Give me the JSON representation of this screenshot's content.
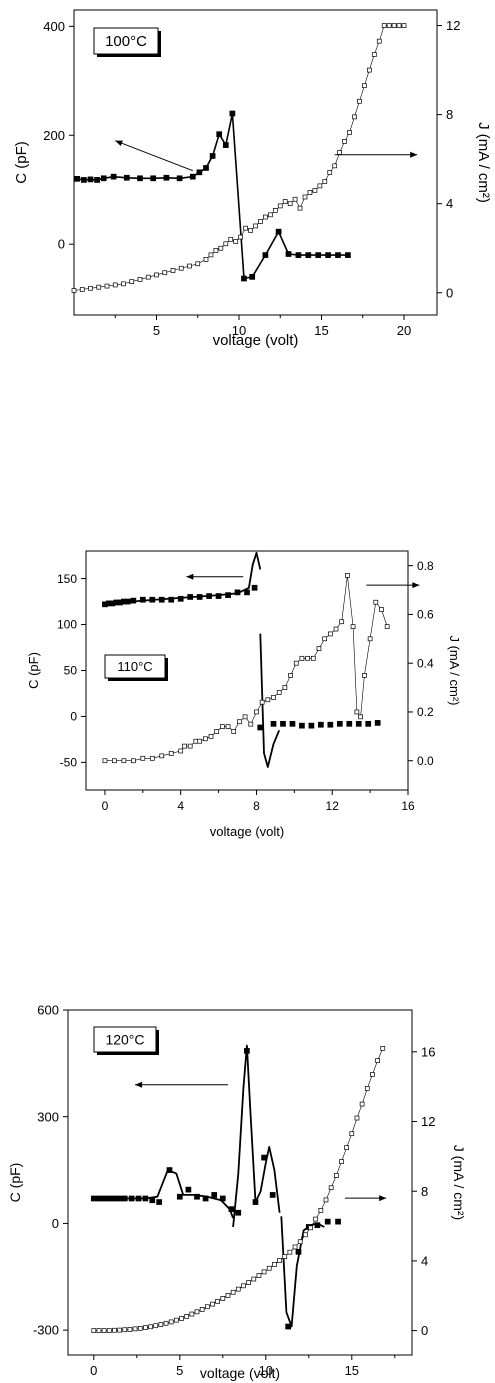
{
  "chart_data": [
    {
      "type": "scatter",
      "temperature_label": "100°C",
      "xlabel": "voltage (volt)",
      "ylabel": "C (pF)",
      "y2label": "J (mA / cm²)",
      "xlim": [
        0,
        22
      ],
      "ylim": [
        -130,
        430
      ],
      "y2lim": [
        -1,
        12.7
      ],
      "xticks": [
        5,
        10,
        15,
        20
      ],
      "yticks": [
        0,
        200,
        400
      ],
      "y2ticks": [
        0,
        4,
        8,
        12
      ],
      "series": [
        {
          "axis": "left",
          "marker": "filled-square",
          "x": [
            0.2,
            0.6,
            1.0,
            1.4,
            1.8,
            2.4,
            3.2,
            4.0,
            4.8,
            5.6,
            6.4,
            7.2,
            7.6,
            8.0,
            8.4,
            8.8,
            9.2,
            9.6,
            10.3,
            10.8,
            11.6,
            12.4,
            13.0,
            13.6,
            14.2,
            14.8,
            15.4,
            16.0,
            16.6
          ],
          "y": [
            120,
            118,
            119,
            118,
            121,
            124,
            122,
            121,
            121,
            122,
            121,
            124,
            132,
            140,
            162,
            202,
            182,
            240,
            -63,
            -60,
            -20,
            23,
            -18,
            -20,
            -20,
            -20,
            -20,
            -20,
            -20
          ]
        },
        {
          "axis": "right",
          "marker": "open-square",
          "x": [
            0,
            0.5,
            1,
            1.5,
            2,
            2.5,
            3,
            3.5,
            4,
            4.5,
            5,
            5.5,
            6,
            6.5,
            7,
            7.5,
            8,
            8.3,
            8.6,
            8.9,
            9.2,
            9.5,
            9.8,
            10.1,
            10.4,
            10.7,
            11,
            11.3,
            11.6,
            11.9,
            12.2,
            12.5,
            12.8,
            13.1,
            13.4,
            13.7,
            14,
            14.3,
            14.6,
            14.9,
            15.2,
            15.5,
            15.8,
            16.1,
            16.4,
            16.7,
            17,
            17.3,
            17.6,
            17.9,
            18.2,
            18.5,
            18.8,
            19.1,
            19.4,
            19.7,
            20
          ],
          "y": [
            0.1,
            0.15,
            0.2,
            0.25,
            0.3,
            0.35,
            0.4,
            0.5,
            0.6,
            0.7,
            0.8,
            0.9,
            1.0,
            1.1,
            1.2,
            1.3,
            1.5,
            1.7,
            1.9,
            2.0,
            2.2,
            2.4,
            2.3,
            2.5,
            2.9,
            2.8,
            3.0,
            3.2,
            3.4,
            3.5,
            3.7,
            3.9,
            4.1,
            4.0,
            4.2,
            3.8,
            4.3,
            4.5,
            4.6,
            4.8,
            5.0,
            5.4,
            5.7,
            6.3,
            6.8,
            7.2,
            7.9,
            8.6,
            9.3,
            10.0,
            10.7,
            11.3,
            12.0,
            12.0,
            12.0,
            12.0,
            12.0
          ]
        }
      ],
      "annotations": [
        {
          "text": "arrow to left axis",
          "from": [
            7.2,
            135
          ],
          "to": [
            2.5,
            190
          ]
        },
        {
          "text": "arrow to right axis",
          "from": [
            15.8,
            6.2
          ],
          "to": [
            20.8,
            6.2
          ]
        }
      ]
    },
    {
      "type": "scatter",
      "temperature_label": "110°C",
      "xlabel": "voltage (volt)",
      "ylabel": "C (pF)",
      "y2label": "J (mA / cm²)",
      "xlim": [
        -1,
        16
      ],
      "ylim": [
        -80,
        180
      ],
      "y2lim": [
        -0.12,
        0.86
      ],
      "xticks": [
        0,
        4,
        8,
        12,
        16
      ],
      "yticks": [
        -50,
        0,
        50,
        100,
        150
      ],
      "y2ticks": [
        0.0,
        0.2,
        0.4,
        0.6,
        0.8
      ],
      "series": [
        {
          "axis": "left",
          "marker": "filled-square",
          "x": [
            0,
            0.2,
            0.4,
            0.6,
            0.8,
            1.0,
            1.2,
            1.5,
            2.0,
            2.5,
            3.0,
            3.5,
            4.0,
            4.5,
            5.0,
            5.5,
            6.0,
            6.5,
            7.0,
            7.5,
            7.9,
            8.2,
            8.9,
            9.4,
            9.9,
            10.4,
            10.9,
            11.4,
            11.9,
            12.4,
            12.9,
            13.4,
            13.9,
            14.4
          ],
          "y": [
            122,
            123,
            123,
            124,
            124,
            125,
            125,
            126,
            127,
            127,
            127,
            127,
            128,
            130,
            130,
            131,
            131,
            132,
            135,
            135,
            140,
            -12,
            -8,
            -8,
            -8,
            -10,
            -10,
            -9,
            -9,
            -8,
            -8,
            -8,
            -8,
            -7
          ],
          "fit_segments": [
            {
              "x": [
                0,
                2,
                4,
                6,
                7,
                7.6,
                7.8,
                8.0,
                8.2
              ],
              "y": [
                122,
                126,
                129,
                132,
                134,
                140,
                165,
                178,
                160
              ]
            },
            {
              "x": [
                8.2,
                8.4,
                8.6,
                8.9,
                9.2
              ],
              "y": [
                90,
                -40,
                -55,
                -30,
                -15
              ]
            }
          ]
        },
        {
          "axis": "right",
          "marker": "open-square",
          "x": [
            0,
            0.5,
            1,
            1.5,
            2,
            2.5,
            3,
            3.5,
            4,
            4.2,
            4.5,
            4.8,
            5.0,
            5.3,
            5.6,
            5.9,
            6.2,
            6.5,
            6.8,
            7.1,
            7.4,
            7.7,
            8.0,
            8.3,
            8.6,
            8.9,
            9.2,
            9.5,
            9.8,
            10.1,
            10.4,
            10.7,
            11,
            11.3,
            11.6,
            11.9,
            12.2,
            12.5,
            12.8,
            13.1,
            13.3,
            13.5,
            13.7,
            14,
            14.3,
            14.6,
            14.9
          ],
          "y": [
            0.0,
            0.0,
            0.0,
            0.0,
            0.01,
            0.01,
            0.02,
            0.03,
            0.04,
            0.06,
            0.06,
            0.08,
            0.08,
            0.09,
            0.1,
            0.12,
            0.14,
            0.14,
            0.12,
            0.16,
            0.18,
            0.15,
            0.2,
            0.24,
            0.25,
            0.26,
            0.28,
            0.3,
            0.35,
            0.4,
            0.42,
            0.42,
            0.42,
            0.46,
            0.5,
            0.52,
            0.54,
            0.57,
            0.76,
            0.55,
            0.2,
            0.18,
            0.35,
            0.5,
            0.65,
            0.62,
            0.55
          ]
        }
      ],
      "annotations": [
        {
          "text": "arrow to left axis",
          "from": [
            7.3,
            152
          ],
          "to": [
            4.3,
            152
          ]
        },
        {
          "text": "arrow to right axis",
          "from": [
            13.8,
            0.72
          ],
          "to": [
            16.6,
            0.72
          ]
        }
      ]
    },
    {
      "type": "scatter",
      "temperature_label": "120°C",
      "xlabel": "voltage (volt)",
      "ylabel": "C (pF)",
      "y2label": "J (mA / cm²)",
      "xlim": [
        -1.5,
        18.5
      ],
      "ylim": [
        -370,
        600
      ],
      "y2lim": [
        -1.4,
        18.4
      ],
      "xticks": [
        0,
        5,
        10,
        15
      ],
      "yticks": [
        -300,
        0,
        300,
        600
      ],
      "y2ticks": [
        0,
        4,
        8,
        12,
        16
      ],
      "series": [
        {
          "axis": "left",
          "marker": "filled-square",
          "x": [
            0,
            0.3,
            0.6,
            0.9,
            1.2,
            1.5,
            1.8,
            2.2,
            2.6,
            3.0,
            3.4,
            3.8,
            4.4,
            5.0,
            5.5,
            6.0,
            6.5,
            7.0,
            7.5,
            8.0,
            8.4,
            8.9,
            9.4,
            9.9,
            10.4,
            11.3,
            11.9,
            12.5,
            13.0,
            13.6,
            14.2
          ],
          "y": [
            70,
            70,
            70,
            70,
            70,
            70,
            70,
            70,
            70,
            70,
            65,
            60,
            150,
            75,
            95,
            75,
            70,
            80,
            70,
            40,
            30,
            485,
            60,
            185,
            80,
            -290,
            -80,
            -10,
            -5,
            5,
            5
          ],
          "fit_segments": [
            {
              "x": [
                0,
                3,
                3.7,
                4.3,
                4.8,
                5.2,
                5.8,
                6.6,
                7.4,
                7.9,
                8.1
              ],
              "y": [
                70,
                70,
                75,
                150,
                140,
                80,
                80,
                75,
                65,
                40,
                15
              ]
            },
            {
              "x": [
                8.1,
                8.4,
                8.7,
                8.9,
                9.1,
                9.4,
                9.7,
                10.0
              ],
              "y": [
                -10,
                140,
                380,
                500,
                320,
                60,
                90,
                170
              ]
            },
            {
              "x": [
                10.0,
                10.2,
                10.5,
                10.8
              ],
              "y": [
                170,
                215,
                150,
                30
              ]
            },
            {
              "x": [
                10.9,
                11.2,
                11.5,
                11.8,
                12.2,
                12.6,
                13.0,
                13.4
              ],
              "y": [
                20,
                -250,
                -290,
                -120,
                -20,
                -5,
                0,
                -10
              ]
            }
          ]
        },
        {
          "axis": "right",
          "marker": "open-square",
          "x": [
            0,
            0.3,
            0.6,
            0.9,
            1.2,
            1.5,
            1.8,
            2.1,
            2.4,
            2.7,
            3.0,
            3.3,
            3.6,
            3.9,
            4.2,
            4.5,
            4.8,
            5.1,
            5.4,
            5.7,
            6.0,
            6.3,
            6.6,
            6.9,
            7.2,
            7.5,
            7.8,
            8.1,
            8.4,
            8.7,
            9.0,
            9.3,
            9.6,
            9.9,
            10.2,
            10.5,
            10.8,
            11.1,
            11.4,
            11.7,
            12.0,
            12.3,
            12.6,
            12.9,
            13.2,
            13.5,
            13.8,
            14.1,
            14.4,
            14.7,
            15.0,
            15.3,
            15.6,
            15.9,
            16.2,
            16.5,
            16.8
          ],
          "y": [
            0,
            0,
            0,
            0,
            0.02,
            0.03,
            0.05,
            0.07,
            0.1,
            0.13,
            0.17,
            0.22,
            0.28,
            0.35,
            0.42,
            0.5,
            0.6,
            0.7,
            0.82,
            0.95,
            1.08,
            1.22,
            1.37,
            1.52,
            1.68,
            1.85,
            2.02,
            2.2,
            2.38,
            2.57,
            2.76,
            2.96,
            3.16,
            3.37,
            3.58,
            3.8,
            4.02,
            4.25,
            4.5,
            4.8,
            5.1,
            5.5,
            5.9,
            6.4,
            6.9,
            7.5,
            8.2,
            8.9,
            9.7,
            10.5,
            11.3,
            12.2,
            13.0,
            13.9,
            14.7,
            15.5,
            16.2
          ]
        }
      ],
      "annotations": [
        {
          "text": "arrow to left axis",
          "from": [
            7.8,
            390
          ],
          "to": [
            2.4,
            390
          ]
        },
        {
          "text": "arrow to right axis",
          "from": [
            14.6,
            7.6
          ],
          "to": [
            17.0,
            7.6
          ]
        }
      ]
    }
  ]
}
